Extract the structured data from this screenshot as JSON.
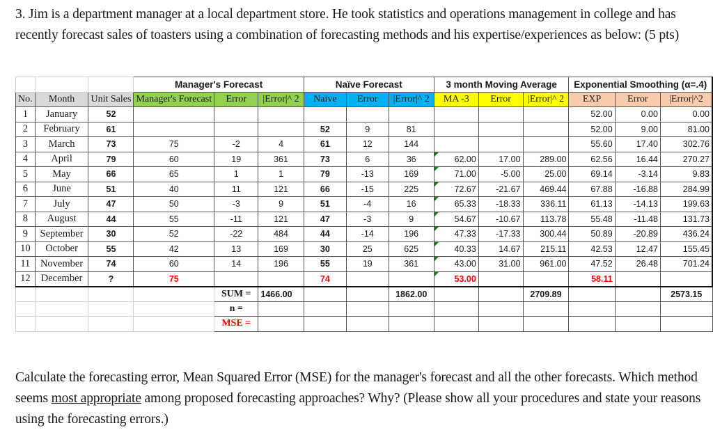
{
  "question": {
    "intro": "3.  Jim is a department manager at a local department store. He took statistics and operations management in college and has recently forecast sales of toasters using a combination of forecasting methods and his expertise/experiences as below: (5 pts)",
    "outro_before": "Calculate the forecasting error, Mean Squared Error (MSE) for the manager's forecast and all the other forecasts. Which method seems ",
    "outro_underlined": "most appropriate",
    "outro_after": " among proposed forecasting approaches? Why? (Please show all your procedures and state your reasons using the forecasting errors.)"
  },
  "table": {
    "groups": {
      "manager": "Manager's Forecast",
      "naive": "Naïve Forecast",
      "ma": "3 month Moving Average",
      "exp": "Exponential Smoothing (α=.4)"
    },
    "headers": {
      "no": "No.",
      "month": "Month",
      "unit_sales": "Unit Sales",
      "mgr_forecast": "Manager's Forecast",
      "mgr_error": "Error",
      "mgr_err2": "|Error|^ 2",
      "naive": "Naïve",
      "naive_error": "Error",
      "naive_err2": "|Error|^ 2",
      "ma3": "MA -3",
      "ma_error": "Error",
      "ma_err2": "|Error|^ 2",
      "exp": "EXP",
      "exp_error": "Error",
      "exp_err2": "|Error|^2"
    },
    "rows": [
      {
        "no": "1",
        "month": "January",
        "sales": "52",
        "mgr": "",
        "mgr_err": "",
        "mgr_err2": "",
        "naive": "",
        "naive_err": "",
        "naive_err2": "",
        "ma": "",
        "ma_err": "",
        "ma_err2": "",
        "exp": "52.00",
        "exp_err": "0.00",
        "exp_err2": "0.00"
      },
      {
        "no": "2",
        "month": "February",
        "sales": "61",
        "mgr": "",
        "mgr_err": "",
        "mgr_err2": "",
        "naive": "52",
        "naive_err": "9",
        "naive_err2": "81",
        "ma": "",
        "ma_err": "",
        "ma_err2": "",
        "exp": "52.00",
        "exp_err": "9.00",
        "exp_err2": "81.00"
      },
      {
        "no": "3",
        "month": "March",
        "sales": "73",
        "mgr": "75",
        "mgr_err": "-2",
        "mgr_err2": "4",
        "naive": "61",
        "naive_err": "12",
        "naive_err2": "144",
        "ma": "",
        "ma_err": "",
        "ma_err2": "",
        "exp": "55.60",
        "exp_err": "17.40",
        "exp_err2": "302.76"
      },
      {
        "no": "4",
        "month": "April",
        "sales": "79",
        "mgr": "60",
        "mgr_err": "19",
        "mgr_err2": "361",
        "naive": "73",
        "naive_err": "6",
        "naive_err2": "36",
        "ma": "62.00",
        "ma_err": "17.00",
        "ma_err2": "289.00",
        "exp": "62.56",
        "exp_err": "16.44",
        "exp_err2": "270.27"
      },
      {
        "no": "5",
        "month": "May",
        "sales": "66",
        "mgr": "65",
        "mgr_err": "1",
        "mgr_err2": "1",
        "naive": "79",
        "naive_err": "-13",
        "naive_err2": "169",
        "ma": "71.00",
        "ma_err": "-5.00",
        "ma_err2": "25.00",
        "exp": "69.14",
        "exp_err": "-3.14",
        "exp_err2": "9.83"
      },
      {
        "no": "6",
        "month": "June",
        "sales": "51",
        "mgr": "40",
        "mgr_err": "11",
        "mgr_err2": "121",
        "naive": "66",
        "naive_err": "-15",
        "naive_err2": "225",
        "ma": "72.67",
        "ma_err": "-21.67",
        "ma_err2": "469.44",
        "exp": "67.88",
        "exp_err": "-16.88",
        "exp_err2": "284.99"
      },
      {
        "no": "7",
        "month": "July",
        "sales": "47",
        "mgr": "50",
        "mgr_err": "-3",
        "mgr_err2": "9",
        "naive": "51",
        "naive_err": "-4",
        "naive_err2": "16",
        "ma": "65.33",
        "ma_err": "-18.33",
        "ma_err2": "336.11",
        "exp": "61.13",
        "exp_err": "-14.13",
        "exp_err2": "199.63"
      },
      {
        "no": "8",
        "month": "August",
        "sales": "44",
        "mgr": "55",
        "mgr_err": "-11",
        "mgr_err2": "121",
        "naive": "47",
        "naive_err": "-3",
        "naive_err2": "9",
        "ma": "54.67",
        "ma_err": "-10.67",
        "ma_err2": "113.78",
        "exp": "55.48",
        "exp_err": "-11.48",
        "exp_err2": "131.73"
      },
      {
        "no": "9",
        "month": "September",
        "sales": "30",
        "mgr": "52",
        "mgr_err": "-22",
        "mgr_err2": "484",
        "naive": "44",
        "naive_err": "-14",
        "naive_err2": "196",
        "ma": "47.33",
        "ma_err": "-17.33",
        "ma_err2": "300.44",
        "exp": "50.89",
        "exp_err": "-20.89",
        "exp_err2": "436.24"
      },
      {
        "no": "10",
        "month": "October",
        "sales": "55",
        "mgr": "42",
        "mgr_err": "13",
        "mgr_err2": "169",
        "naive": "30",
        "naive_err": "25",
        "naive_err2": "625",
        "ma": "40.33",
        "ma_err": "14.67",
        "ma_err2": "215.11",
        "exp": "42.53",
        "exp_err": "12.47",
        "exp_err2": "155.45"
      },
      {
        "no": "11",
        "month": "November",
        "sales": "74",
        "mgr": "60",
        "mgr_err": "14",
        "mgr_err2": "196",
        "naive": "55",
        "naive_err": "19",
        "naive_err2": "361",
        "ma": "43.00",
        "ma_err": "31.00",
        "ma_err2": "961.00",
        "exp": "47.52",
        "exp_err": "26.48",
        "exp_err2": "701.24"
      },
      {
        "no": "12",
        "month": "December",
        "sales": "?",
        "mgr": "75",
        "mgr_err": "",
        "mgr_err2": "",
        "naive": "74",
        "naive_err": "",
        "naive_err2": "",
        "ma": "53.00",
        "ma_err": "",
        "ma_err2": "",
        "exp": "58.11",
        "exp_err": "",
        "exp_err2": ""
      }
    ],
    "footer": {
      "sum_label": "SUM =",
      "n_label": "n =",
      "mse_label": "MSE =",
      "sums": {
        "manager": "1466.00",
        "naive": "1862.00",
        "ma": "2709.89",
        "exp": "2573.15"
      }
    }
  }
}
